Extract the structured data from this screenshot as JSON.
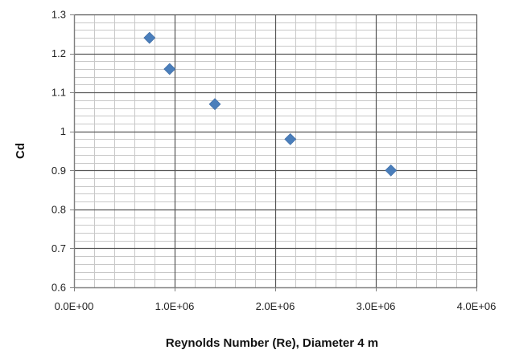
{
  "chart_data": {
    "type": "scatter",
    "title": "",
    "xlabel": "Reynolds Number (Re), Diameter 4 m",
    "ylabel": "Cd",
    "xlim": [
      0,
      4000000
    ],
    "ylim": [
      0.6,
      1.3
    ],
    "x_ticks": [
      0,
      1000000,
      2000000,
      3000000,
      4000000
    ],
    "x_tick_labels": [
      "0.0E+00",
      "1.0E+06",
      "2.0E+06",
      "3.0E+06",
      "4.0E+06"
    ],
    "y_ticks": [
      0.6,
      0.7,
      0.8,
      0.9,
      1.0,
      1.1,
      1.2,
      1.3
    ],
    "y_tick_labels": [
      "0.6",
      "0.7",
      "0.8",
      "0.9",
      "1",
      "1.1",
      "1.2",
      "1.3"
    ],
    "grid": {
      "major": true,
      "minor": true,
      "x_minor_step": 200000,
      "y_minor_step": 0.02
    },
    "marker": "diamond",
    "series": [
      {
        "color": "#4a7ebb",
        "points": [
          {
            "x": 750000,
            "y": 1.24
          },
          {
            "x": 950000,
            "y": 1.16
          },
          {
            "x": 1400000,
            "y": 1.07
          },
          {
            "x": 2150000,
            "y": 0.98
          },
          {
            "x": 3150000,
            "y": 0.9
          }
        ]
      }
    ],
    "colors": {
      "grid_major": "#555555",
      "grid_minor": "#c8c8c8",
      "axis": "#808080"
    }
  }
}
